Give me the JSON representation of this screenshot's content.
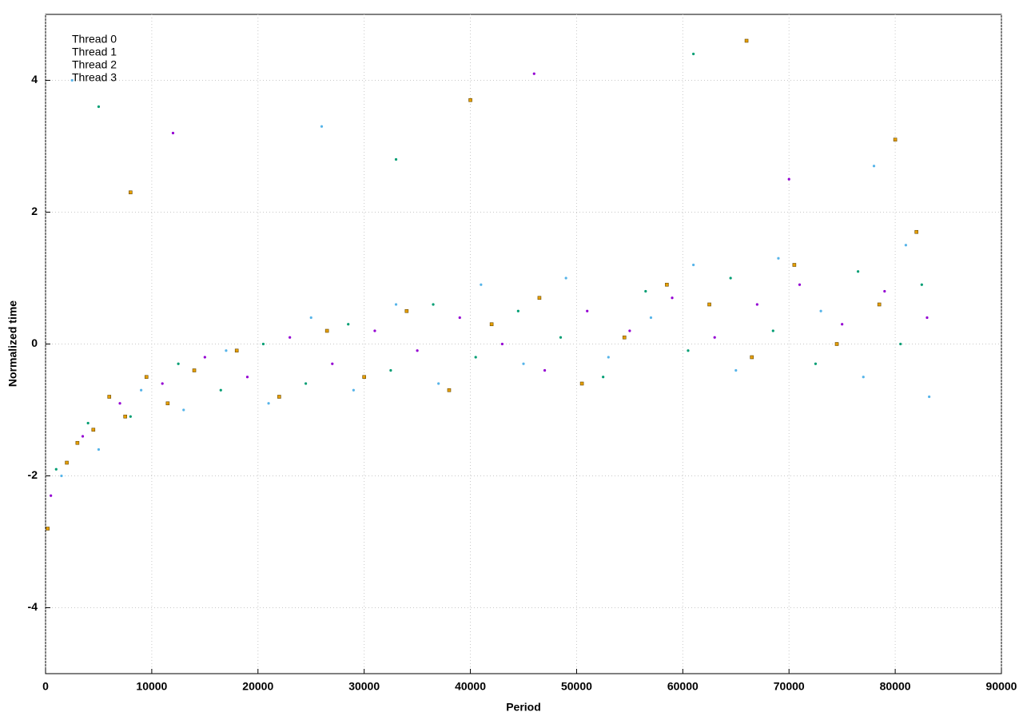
{
  "chart_data": {
    "type": "scatter",
    "xlabel": "Period",
    "ylabel": "Normalized time",
    "xlim": [
      0,
      90000
    ],
    "xticks": [
      0,
      10000,
      20000,
      30000,
      40000,
      50000,
      60000,
      70000,
      80000,
      90000
    ],
    "ylim": [
      -5,
      5
    ],
    "yticks": [
      -4,
      -2,
      0,
      2,
      4
    ],
    "grid": true,
    "legend": "top-left",
    "series": [
      {
        "name": "Thread 0",
        "color": "#9400d3",
        "marker": "dot",
        "x": [
          500,
          3500,
          7000,
          11000,
          15000,
          19000,
          23000,
          27000,
          31000,
          35000,
          39000,
          43000,
          47000,
          51000,
          55000,
          59000,
          63000,
          67000,
          71000,
          75000,
          79000,
          83000,
          12000,
          46000,
          70000
        ],
        "values": [
          -2.3,
          -1.4,
          -0.9,
          -0.6,
          -0.2,
          -0.5,
          0.1,
          -0.3,
          0.2,
          -0.1,
          0.4,
          0.0,
          -0.4,
          0.5,
          0.2,
          0.7,
          0.1,
          0.6,
          0.9,
          0.3,
          0.8,
          0.4,
          3.2,
          4.1,
          2.5
        ]
      },
      {
        "name": "Thread 1",
        "color": "#009e73",
        "marker": "dot",
        "x": [
          1000,
          4000,
          8000,
          12500,
          16500,
          20500,
          24500,
          28500,
          32500,
          36500,
          40500,
          44500,
          48500,
          52500,
          56500,
          60500,
          64500,
          68500,
          72500,
          76500,
          80500,
          82500,
          5000,
          33000,
          61000
        ],
        "values": [
          -1.9,
          -1.2,
          -1.1,
          -0.3,
          -0.7,
          0.0,
          -0.6,
          0.3,
          -0.4,
          0.6,
          -0.2,
          0.5,
          0.1,
          -0.5,
          0.8,
          -0.1,
          1.0,
          0.2,
          -0.3,
          1.1,
          0.0,
          0.9,
          3.6,
          2.8,
          4.4
        ]
      },
      {
        "name": "Thread 2",
        "color": "#56b4e9",
        "marker": "dot",
        "x": [
          1500,
          5000,
          9000,
          13000,
          17000,
          21000,
          25000,
          29000,
          33000,
          37000,
          41000,
          45000,
          49000,
          53000,
          57000,
          61000,
          65000,
          69000,
          73000,
          77000,
          81000,
          83200,
          2500,
          26000,
          78000
        ],
        "values": [
          -2.0,
          -1.6,
          -0.7,
          -1.0,
          -0.1,
          -0.9,
          0.4,
          -0.7,
          0.6,
          -0.6,
          0.9,
          -0.3,
          1.0,
          -0.2,
          0.4,
          1.2,
          -0.4,
          1.3,
          0.5,
          -0.5,
          1.5,
          -0.8,
          4.0,
          3.3,
          2.7
        ]
      },
      {
        "name": "Thread 3",
        "color": "#e69f00",
        "marker": "square",
        "x": [
          200,
          2000,
          3000,
          4500,
          6000,
          7500,
          9500,
          11500,
          14000,
          18000,
          22000,
          26500,
          30000,
          34000,
          38000,
          42000,
          46500,
          50500,
          54500,
          58500,
          62500,
          66500,
          70500,
          74500,
          78500,
          82000,
          8000,
          40000,
          66000,
          80000
        ],
        "values": [
          -2.8,
          -1.8,
          -1.5,
          -1.3,
          -0.8,
          -1.1,
          -0.5,
          -0.9,
          -0.4,
          -0.1,
          -0.8,
          0.2,
          -0.5,
          0.5,
          -0.7,
          0.3,
          0.7,
          -0.6,
          0.1,
          0.9,
          0.6,
          -0.2,
          1.2,
          0.0,
          0.6,
          1.7,
          2.3,
          3.7,
          4.6,
          3.1
        ]
      }
    ]
  }
}
